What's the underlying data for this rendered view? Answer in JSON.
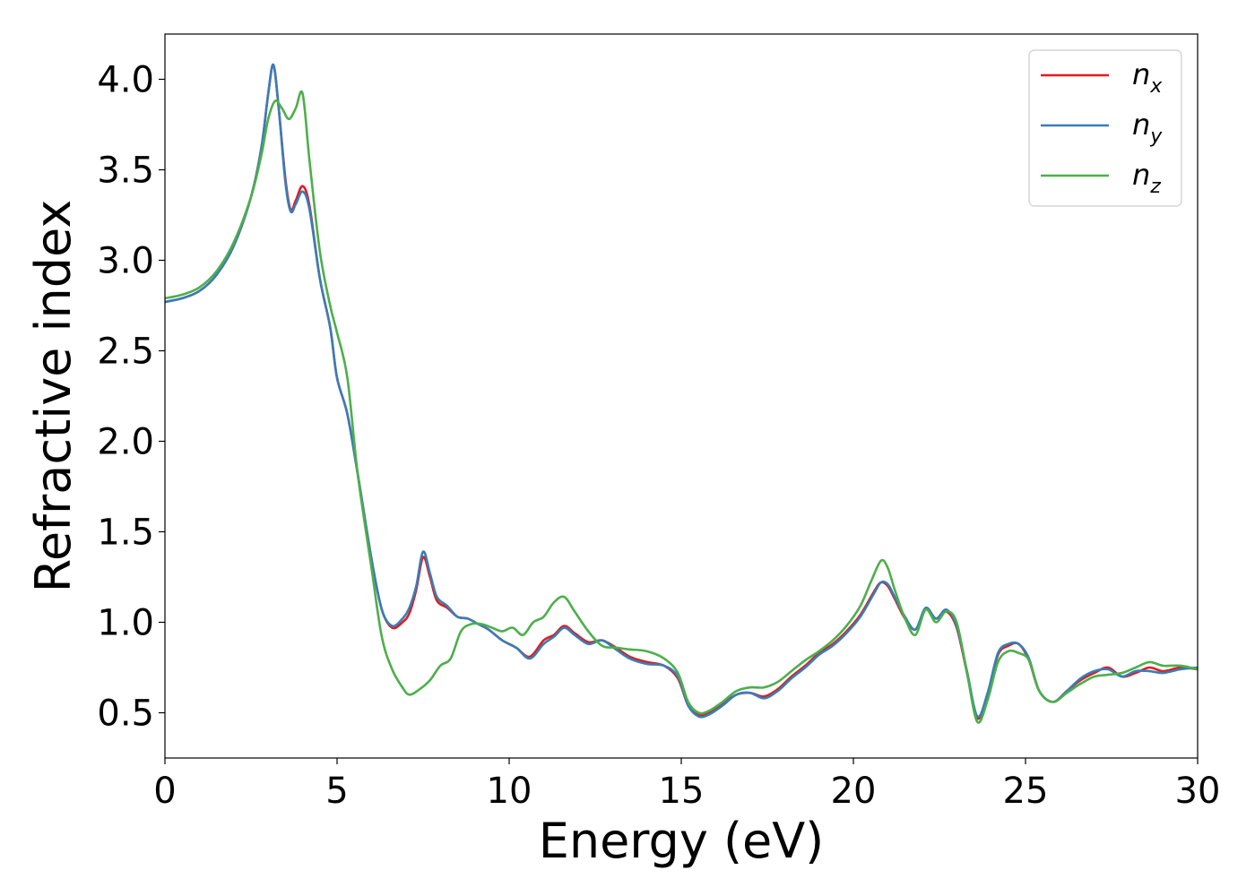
{
  "chart_data": {
    "type": "line",
    "xlabel": "Energy (eV)",
    "ylabel": "Refractive index",
    "xlim": [
      0,
      30
    ],
    "ylim": [
      0.25,
      4.25
    ],
    "xticks": [
      0,
      5,
      10,
      15,
      20,
      25,
      30
    ],
    "yticks": [
      0.5,
      1.0,
      1.5,
      2.0,
      2.5,
      3.0,
      3.5,
      4.0
    ],
    "grid": false,
    "legend_position": "top-right",
    "series": [
      {
        "name": "n",
        "name_subscript": "x",
        "color": "#e41a1c",
        "x": [
          0,
          0.5,
          1.0,
          1.5,
          2.0,
          2.5,
          2.8,
          3.0,
          3.15,
          3.3,
          3.5,
          3.65,
          3.8,
          4.0,
          4.2,
          4.5,
          4.8,
          5.0,
          5.3,
          5.6,
          6.0,
          6.3,
          6.6,
          6.9,
          7.1,
          7.3,
          7.5,
          7.7,
          7.9,
          8.2,
          8.5,
          8.8,
          9.1,
          9.4,
          9.8,
          10.2,
          10.6,
          11.0,
          11.3,
          11.6,
          11.9,
          12.3,
          12.7,
          13.1,
          13.5,
          14.0,
          14.5,
          14.9,
          15.2,
          15.5,
          15.8,
          16.2,
          16.6,
          17.0,
          17.4,
          17.8,
          18.2,
          18.6,
          19.0,
          19.4,
          19.8,
          20.2,
          20.6,
          20.8,
          21.0,
          21.2,
          21.5,
          21.8,
          22.1,
          22.4,
          22.7,
          23.0,
          23.3,
          23.6,
          23.9,
          24.2,
          24.5,
          24.8,
          25.1,
          25.4,
          25.8,
          26.2,
          26.6,
          27.0,
          27.4,
          27.8,
          28.2,
          28.6,
          29.0,
          29.5,
          30.0
        ],
        "y": [
          2.77,
          2.79,
          2.83,
          2.92,
          3.08,
          3.35,
          3.62,
          3.92,
          4.08,
          3.85,
          3.45,
          3.28,
          3.33,
          3.41,
          3.3,
          2.9,
          2.63,
          2.35,
          2.15,
          1.82,
          1.35,
          1.07,
          0.97,
          1.0,
          1.05,
          1.18,
          1.36,
          1.25,
          1.12,
          1.08,
          1.03,
          1.02,
          0.99,
          0.96,
          0.9,
          0.86,
          0.81,
          0.9,
          0.93,
          0.98,
          0.94,
          0.89,
          0.9,
          0.86,
          0.81,
          0.78,
          0.76,
          0.69,
          0.54,
          0.49,
          0.5,
          0.55,
          0.6,
          0.61,
          0.59,
          0.63,
          0.7,
          0.76,
          0.83,
          0.88,
          0.95,
          1.04,
          1.17,
          1.22,
          1.2,
          1.13,
          1.02,
          0.96,
          1.07,
          1.02,
          1.06,
          0.97,
          0.72,
          0.47,
          0.6,
          0.82,
          0.87,
          0.88,
          0.79,
          0.62,
          0.56,
          0.62,
          0.68,
          0.72,
          0.75,
          0.7,
          0.72,
          0.75,
          0.73,
          0.75,
          0.74
        ]
      },
      {
        "name": "n",
        "name_subscript": "y",
        "color": "#377eb8",
        "x": [
          0,
          0.5,
          1.0,
          1.5,
          2.0,
          2.5,
          2.8,
          3.0,
          3.15,
          3.3,
          3.5,
          3.65,
          3.8,
          4.0,
          4.2,
          4.5,
          4.8,
          5.0,
          5.3,
          5.6,
          6.0,
          6.3,
          6.6,
          6.9,
          7.1,
          7.3,
          7.5,
          7.7,
          7.9,
          8.2,
          8.5,
          8.8,
          9.1,
          9.4,
          9.8,
          10.2,
          10.6,
          11.0,
          11.3,
          11.6,
          11.9,
          12.3,
          12.7,
          13.1,
          13.5,
          14.0,
          14.5,
          14.9,
          15.2,
          15.5,
          15.8,
          16.2,
          16.6,
          17.0,
          17.4,
          17.8,
          18.2,
          18.6,
          19.0,
          19.4,
          19.8,
          20.2,
          20.6,
          20.8,
          21.0,
          21.2,
          21.5,
          21.8,
          22.1,
          22.4,
          22.7,
          23.0,
          23.3,
          23.6,
          23.9,
          24.2,
          24.5,
          24.8,
          25.1,
          25.4,
          25.8,
          26.2,
          26.6,
          27.0,
          27.4,
          27.8,
          28.2,
          28.6,
          29.0,
          29.5,
          30.0
        ],
        "y": [
          2.77,
          2.79,
          2.83,
          2.92,
          3.08,
          3.35,
          3.62,
          3.92,
          4.08,
          3.85,
          3.43,
          3.27,
          3.31,
          3.38,
          3.28,
          2.9,
          2.63,
          2.35,
          2.15,
          1.82,
          1.35,
          1.07,
          0.98,
          1.02,
          1.08,
          1.2,
          1.39,
          1.27,
          1.14,
          1.09,
          1.03,
          1.02,
          0.99,
          0.96,
          0.9,
          0.86,
          0.8,
          0.88,
          0.92,
          0.97,
          0.93,
          0.88,
          0.9,
          0.85,
          0.8,
          0.77,
          0.76,
          0.7,
          0.54,
          0.48,
          0.49,
          0.54,
          0.6,
          0.61,
          0.58,
          0.62,
          0.69,
          0.75,
          0.82,
          0.87,
          0.94,
          1.03,
          1.16,
          1.22,
          1.21,
          1.14,
          1.03,
          0.96,
          1.08,
          1.02,
          1.07,
          0.98,
          0.73,
          0.48,
          0.61,
          0.83,
          0.88,
          0.88,
          0.8,
          0.62,
          0.56,
          0.62,
          0.69,
          0.73,
          0.74,
          0.7,
          0.73,
          0.73,
          0.72,
          0.74,
          0.75
        ]
      },
      {
        "name": "n",
        "name_subscript": "z",
        "color": "#4daf4a",
        "x": [
          0,
          0.5,
          1.0,
          1.5,
          2.0,
          2.5,
          2.8,
          3.0,
          3.2,
          3.4,
          3.6,
          3.8,
          4.0,
          4.2,
          4.5,
          4.8,
          5.0,
          5.3,
          5.6,
          6.0,
          6.3,
          6.6,
          6.9,
          7.1,
          7.4,
          7.7,
          8.0,
          8.3,
          8.6,
          8.9,
          9.2,
          9.5,
          9.8,
          10.1,
          10.4,
          10.7,
          11.0,
          11.3,
          11.6,
          11.9,
          12.3,
          12.7,
          13.1,
          13.5,
          14.0,
          14.5,
          14.9,
          15.2,
          15.5,
          15.8,
          16.2,
          16.6,
          17.0,
          17.4,
          17.8,
          18.2,
          18.6,
          19.0,
          19.4,
          19.8,
          20.2,
          20.5,
          20.8,
          21.0,
          21.2,
          21.5,
          21.8,
          22.1,
          22.4,
          22.7,
          23.0,
          23.3,
          23.6,
          23.9,
          24.2,
          24.5,
          24.8,
          25.1,
          25.4,
          25.8,
          26.2,
          26.6,
          27.0,
          27.4,
          27.8,
          28.2,
          28.6,
          29.0,
          29.5,
          30.0
        ],
        "y": [
          2.79,
          2.81,
          2.85,
          2.94,
          3.1,
          3.35,
          3.58,
          3.78,
          3.88,
          3.84,
          3.78,
          3.84,
          3.92,
          3.55,
          3.05,
          2.75,
          2.6,
          2.35,
          1.82,
          1.3,
          0.92,
          0.74,
          0.64,
          0.6,
          0.63,
          0.68,
          0.76,
          0.8,
          0.95,
          0.99,
          0.99,
          0.97,
          0.95,
          0.97,
          0.93,
          1.0,
          1.03,
          1.11,
          1.14,
          1.06,
          0.95,
          0.87,
          0.86,
          0.85,
          0.84,
          0.8,
          0.72,
          0.56,
          0.5,
          0.51,
          0.56,
          0.62,
          0.64,
          0.64,
          0.67,
          0.73,
          0.79,
          0.84,
          0.9,
          0.98,
          1.09,
          1.22,
          1.34,
          1.3,
          1.18,
          1.02,
          0.93,
          1.07,
          1.0,
          1.06,
          1.0,
          0.72,
          0.45,
          0.57,
          0.78,
          0.84,
          0.83,
          0.79,
          0.62,
          0.56,
          0.61,
          0.66,
          0.7,
          0.71,
          0.72,
          0.75,
          0.78,
          0.76,
          0.76,
          0.74
        ]
      }
    ]
  }
}
